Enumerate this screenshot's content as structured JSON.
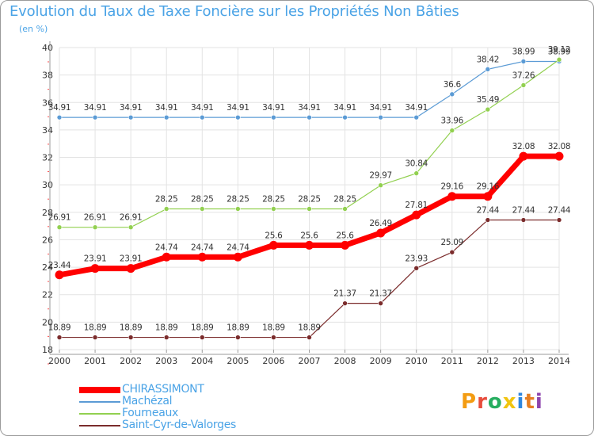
{
  "title": "Evolution du Taux de Taxe Foncière sur les Propriétés Non Bâties",
  "subtitle": "(en %)",
  "logo_text": "Proxiti",
  "colors": {
    "chirassimont": "#ff0000",
    "machezal": "#5b9bd5",
    "fourneaux": "#92d050",
    "saint_cyr": "#7b2c2c",
    "grid": "#e3e3e3",
    "axis": "#9a9a9a",
    "accent_text": "#4aa3e6"
  },
  "chart_data": {
    "type": "line",
    "title": "Evolution du Taux de Taxe Foncière sur les Propriétés Non Bâties",
    "ylabel": "(en %)",
    "xlabel": "",
    "ylim": [
      18,
      40
    ],
    "yticks": [
      18,
      20,
      22,
      24,
      26,
      28,
      30,
      32,
      34,
      36,
      38,
      40
    ],
    "grid": true,
    "legend_position": "bottom-left",
    "categories": [
      "2000",
      "2001",
      "2002",
      "2003",
      "2004",
      "2005",
      "2006",
      "2007",
      "2008",
      "2009",
      "2010",
      "2011",
      "2012",
      "2013",
      "2014"
    ],
    "series": [
      {
        "name": "CHIRASSIMONT",
        "key": "chirassimont",
        "values": [
          23.44,
          23.91,
          23.91,
          24.74,
          24.74,
          24.74,
          25.6,
          25.6,
          25.6,
          26.49,
          27.81,
          29.16,
          29.16,
          32.08,
          32.08
        ],
        "labels": [
          "23.44",
          "23.91",
          "23.91",
          "24.74",
          "24.74",
          "24.74",
          "25.6",
          "25.6",
          "25.6",
          "26.49",
          "27.81",
          "29.16",
          "29.16",
          "32.08",
          "32.08"
        ]
      },
      {
        "name": "Machézal",
        "key": "machezal",
        "values": [
          34.91,
          34.91,
          34.91,
          34.91,
          34.91,
          34.91,
          34.91,
          34.91,
          34.91,
          34.91,
          34.91,
          36.6,
          38.42,
          38.99,
          38.99
        ],
        "labels": [
          "34.91",
          "34.91",
          "34.91",
          "34.91",
          "34.91",
          "34.91",
          "34.91",
          "34.91",
          "34.91",
          "34.91",
          "34.91",
          "36.6",
          "38.42",
          "38.99",
          "38.99"
        ]
      },
      {
        "name": "Fourneaux",
        "key": "fourneaux",
        "values": [
          26.91,
          26.91,
          26.91,
          28.25,
          28.25,
          28.25,
          28.25,
          28.25,
          28.25,
          29.97,
          30.84,
          33.96,
          35.49,
          37.26,
          39.12
        ],
        "labels": [
          "26.91",
          "26.91",
          "26.91",
          "28.25",
          "28.25",
          "28.25",
          "28.25",
          "28.25",
          "28.25",
          "29.97",
          "30.84",
          "33.96",
          "35.49",
          "37.26",
          "39.12"
        ]
      },
      {
        "name": "Saint-Cyr-de-Valorges",
        "key": "saint_cyr",
        "values": [
          18.89,
          18.89,
          18.89,
          18.89,
          18.89,
          18.89,
          18.89,
          18.89,
          21.37,
          21.37,
          23.93,
          25.09,
          27.44,
          27.44,
          27.44
        ],
        "labels": [
          "18.89",
          "18.89",
          "18.89",
          "18.89",
          "18.89",
          "18.89",
          "18.89",
          "18.89",
          "21.37",
          "21.37",
          "23.93",
          "25.09",
          "27.44",
          "27.44",
          "27.44"
        ]
      }
    ]
  }
}
